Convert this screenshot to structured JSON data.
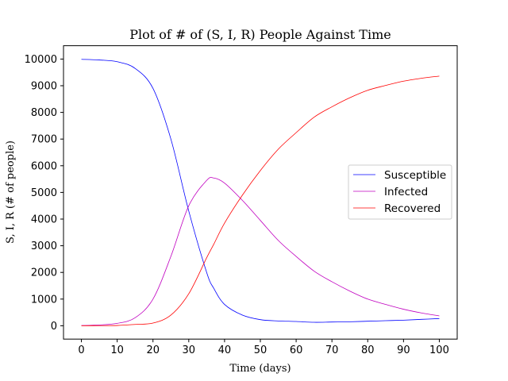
{
  "chart_data": {
    "type": "line",
    "title": "Plot of # of (S, I, R) People Against Time",
    "xlabel": "Time (days)",
    "ylabel": "S, I, R (# of people)",
    "xlim": [
      -5,
      105
    ],
    "ylim": [
      -500,
      10500
    ],
    "xticks": [
      0,
      10,
      20,
      30,
      40,
      50,
      60,
      70,
      80,
      90,
      100
    ],
    "yticks": [
      0,
      1000,
      2000,
      3000,
      4000,
      5000,
      6000,
      7000,
      8000,
      9000,
      10000
    ],
    "grid": false,
    "legend_position": "center-right",
    "x": [
      0,
      5,
      10,
      15,
      20,
      25,
      30,
      35,
      37,
      40,
      45,
      50,
      55,
      60,
      65,
      70,
      75,
      80,
      85,
      90,
      95,
      100
    ],
    "series": [
      {
        "name": "Susceptible",
        "color": "#0000ff",
        "values": [
          9990,
          9965,
          9900,
          9650,
          8900,
          7000,
          4300,
          2000,
          1400,
          800,
          400,
          230,
          180,
          160,
          130,
          140,
          150,
          170,
          190,
          210,
          240,
          270
        ]
      },
      {
        "name": "Infected",
        "color": "#c000c0",
        "values": [
          10,
          30,
          90,
          300,
          1000,
          2600,
          4500,
          5450,
          5540,
          5350,
          4700,
          3950,
          3200,
          2600,
          2050,
          1650,
          1300,
          1000,
          800,
          620,
          480,
          370
        ]
      },
      {
        "name": "Recovered",
        "color": "#ff0000",
        "values": [
          0,
          5,
          10,
          50,
          100,
          400,
          1200,
          2550,
          3060,
          3850,
          4900,
          5820,
          6620,
          7240,
          7820,
          8210,
          8550,
          8830,
          9010,
          9170,
          9280,
          9360
        ]
      }
    ]
  }
}
